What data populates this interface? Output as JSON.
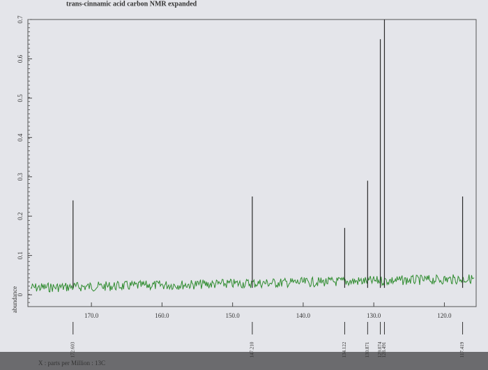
{
  "chart_data": {
    "type": "nmr",
    "title": "trans-cinnamic acid carbon NMR expanded",
    "x_label": "X : parts per Million : 13C",
    "y_label": "abundance",
    "xlim": [
      179,
      115.5
    ],
    "ylim": [
      -0.03,
      0.7
    ],
    "xticks": [
      {
        "value": 170,
        "label": "170.0"
      },
      {
        "value": 160,
        "label": "160.0"
      },
      {
        "value": 150,
        "label": "150.0"
      },
      {
        "value": 140,
        "label": "140.0"
      },
      {
        "value": 130,
        "label": "130.0"
      },
      {
        "value": 120,
        "label": "120.0"
      }
    ],
    "yticks": [
      0,
      0.1,
      0.2,
      0.3,
      0.4,
      0.5,
      0.6,
      0.7
    ],
    "peaks": {
      "color": "#2b2b2b",
      "x": [
        172.603,
        147.21,
        134.122,
        130.871,
        129.074,
        128.491,
        117.419
      ],
      "x_labels": [
        "172.603",
        "147.210",
        "134.122",
        "130.871",
        "129.074",
        "128.491",
        "117.419"
      ],
      "values": [
        0.24,
        0.25,
        0.17,
        0.29,
        0.65,
        0.7,
        0.25
      ]
    },
    "baseline_color": "#2e8b2e"
  }
}
